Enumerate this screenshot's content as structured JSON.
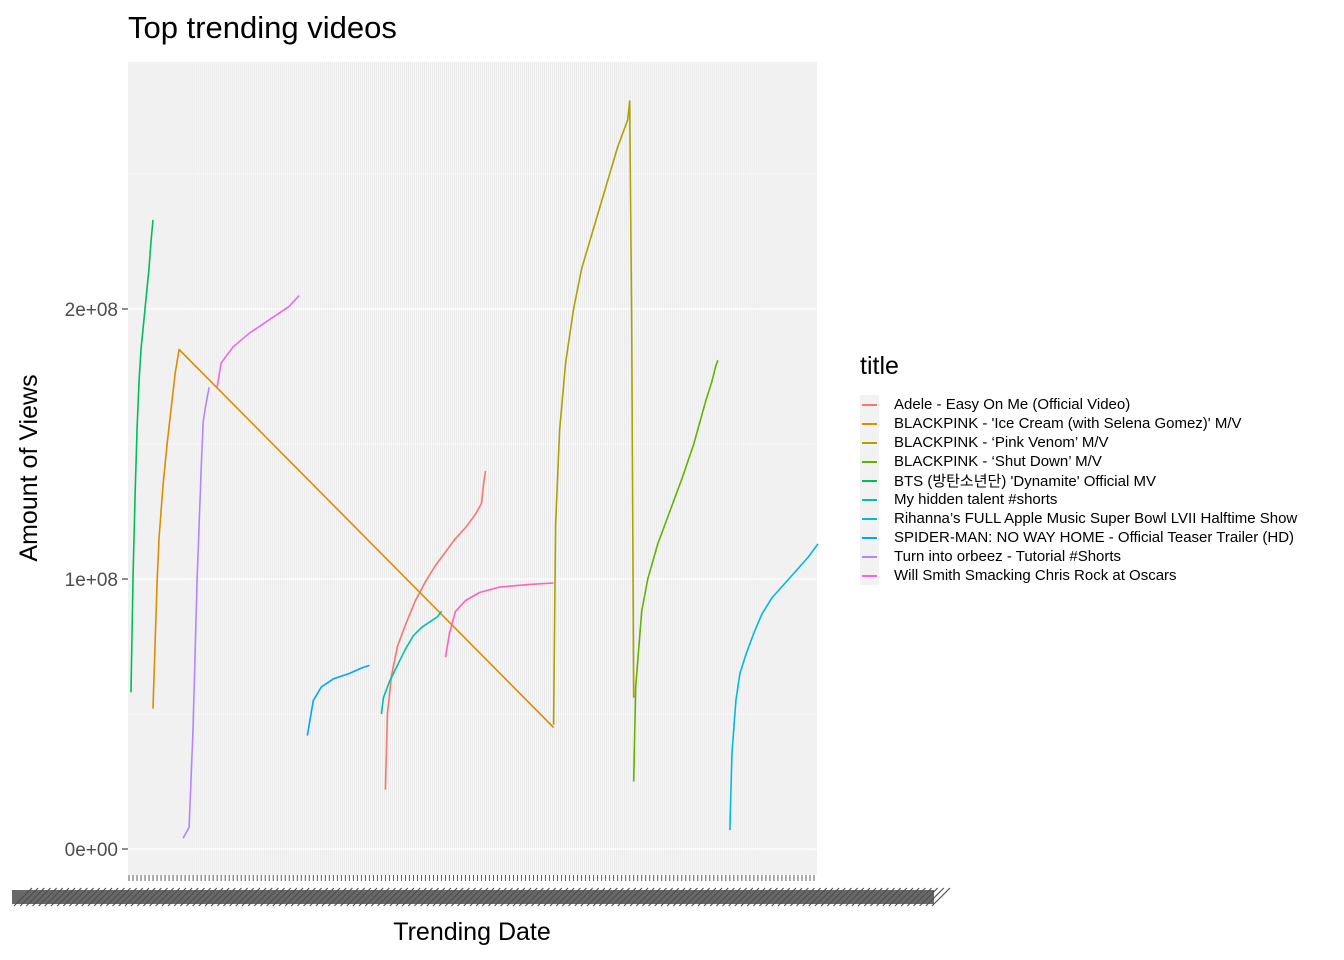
{
  "chart_data": {
    "type": "line",
    "title": "Top trending videos",
    "xlabel": "Trending Date",
    "ylabel": "Amount of Views",
    "ylim": [
      0,
      280000000
    ],
    "yticks": [
      {
        "value": 0,
        "label": "0e+00"
      },
      {
        "value": 100000000,
        "label": "1e+08"
      },
      {
        "value": 200000000,
        "label": "2e+08"
      }
    ],
    "x_categories_count": 344,
    "x_tick_labels_overlapping": true,
    "grid": true,
    "legend_title": "title",
    "legend_position": "right",
    "series": [
      {
        "name": "Adele - Easy On Me (Official Video)",
        "color": "#F8766D",
        "points": [
          [
            128,
            22000000
          ],
          [
            129,
            50000000
          ],
          [
            131,
            64000000
          ],
          [
            134,
            75000000
          ],
          [
            138,
            83000000
          ],
          [
            143,
            92000000
          ],
          [
            148,
            99000000
          ],
          [
            153,
            105000000
          ],
          [
            158,
            110000000
          ],
          [
            163,
            115000000
          ],
          [
            168,
            119000000
          ],
          [
            173,
            124000000
          ],
          [
            176,
            128000000
          ],
          [
            177,
            135000000
          ],
          [
            178,
            140000000
          ]
        ]
      },
      {
        "name": "BLACKPINK - 'Ice Cream (with Selena Gomez)' M/V",
        "color": "#DB8E00",
        "points": [
          [
            12,
            52000000
          ],
          [
            14,
            98000000
          ],
          [
            15,
            115000000
          ],
          [
            17,
            135000000
          ],
          [
            19,
            150000000
          ],
          [
            21,
            163000000
          ],
          [
            23,
            176000000
          ],
          [
            25,
            185000000
          ],
          [
            212,
            45000000
          ]
        ]
      },
      {
        "name": "BLACKPINK - ‘Pink Venom’ M/V",
        "color": "#AEA200",
        "points": [
          [
            212,
            46000000
          ],
          [
            213,
            120000000
          ],
          [
            215,
            155000000
          ],
          [
            218,
            180000000
          ],
          [
            222,
            200000000
          ],
          [
            226,
            215000000
          ],
          [
            232,
            230000000
          ],
          [
            238,
            245000000
          ],
          [
            244,
            260000000
          ],
          [
            249,
            270000000
          ],
          [
            250,
            277000000
          ],
          [
            251,
            195000000
          ],
          [
            252,
            56000000
          ]
        ]
      },
      {
        "name": "BLACKPINK - ‘Shut Down’ M/V",
        "color": "#64B200",
        "points": [
          [
            252,
            25000000
          ],
          [
            253,
            60000000
          ],
          [
            256,
            88000000
          ],
          [
            259,
            100000000
          ],
          [
            264,
            113000000
          ],
          [
            270,
            125000000
          ],
          [
            276,
            137000000
          ],
          [
            282,
            150000000
          ],
          [
            285,
            158000000
          ],
          [
            288,
            166000000
          ],
          [
            291,
            173000000
          ],
          [
            293,
            179000000
          ],
          [
            294,
            181000000
          ]
        ]
      },
      {
        "name": "BTS (방탄소년단) 'Dynamite' Official MV",
        "color": "#00BD5C",
        "points": [
          [
            1,
            58000000
          ],
          [
            2,
            100000000
          ],
          [
            3,
            130000000
          ],
          [
            4,
            155000000
          ],
          [
            5,
            173000000
          ],
          [
            6,
            185000000
          ],
          [
            8,
            200000000
          ],
          [
            10,
            215000000
          ],
          [
            11,
            225000000
          ],
          [
            12,
            233000000
          ]
        ]
      },
      {
        "name": "My hidden talent #shorts",
        "color": "#00C1A7",
        "points": [
          [
            126,
            50000000
          ],
          [
            127,
            56000000
          ],
          [
            130,
            62000000
          ],
          [
            134,
            68000000
          ],
          [
            138,
            74000000
          ],
          [
            142,
            79000000
          ],
          [
            146,
            82000000
          ],
          [
            150,
            84000000
          ],
          [
            154,
            86000000
          ],
          [
            156,
            88000000
          ]
        ]
      },
      {
        "name": "Rihanna’s FULL Apple Music Super Bowl LVII Halftime Show",
        "color": "#00BADE",
        "points": [
          [
            300,
            7000000
          ],
          [
            301,
            35000000
          ],
          [
            303,
            55000000
          ],
          [
            305,
            65000000
          ],
          [
            308,
            72000000
          ],
          [
            312,
            80000000
          ],
          [
            316,
            87000000
          ],
          [
            321,
            93000000
          ],
          [
            327,
            98000000
          ],
          [
            333,
            103000000
          ],
          [
            339,
            108000000
          ],
          [
            344,
            113000000
          ]
        ]
      },
      {
        "name": "SPIDER-MAN: NO WAY HOME - Official Teaser Trailer (HD)",
        "color": "#00A6FF",
        "points": [
          [
            89,
            42000000
          ],
          [
            92,
            55000000
          ],
          [
            96,
            60000000
          ],
          [
            102,
            63000000
          ],
          [
            110,
            65000000
          ],
          [
            116,
            67000000
          ],
          [
            120,
            68000000
          ]
        ]
      },
      {
        "name": "Turn into orbeez - Tutorial #Shorts",
        "color": "#B385FF",
        "points": [
          [
            27,
            4000000
          ],
          [
            30,
            8000000
          ],
          [
            32,
            45000000
          ],
          [
            34,
            100000000
          ],
          [
            36,
            140000000
          ],
          [
            37,
            158000000
          ],
          [
            38,
            163000000
          ],
          [
            40,
            171000000
          ]
        ]
      },
      {
        "name": "Will Smith Smacking Chris Rock at Oscars",
        "color": "#EF67EB",
        "points": [
          [
            44,
            171000000
          ],
          [
            46,
            180000000
          ],
          [
            52,
            186000000
          ],
          [
            60,
            191000000
          ],
          [
            70,
            196000000
          ],
          [
            80,
            201000000
          ],
          [
            85,
            205000000
          ]
        ]
      },
      {
        "name": "",
        "color": "#FF63B6",
        "points": [
          [
            158,
            71000000
          ],
          [
            160,
            80000000
          ],
          [
            163,
            88000000
          ],
          [
            168,
            92000000
          ],
          [
            175,
            95000000
          ],
          [
            185,
            97000000
          ],
          [
            200,
            98000000
          ],
          [
            212,
            98500000
          ]
        ]
      }
    ]
  }
}
